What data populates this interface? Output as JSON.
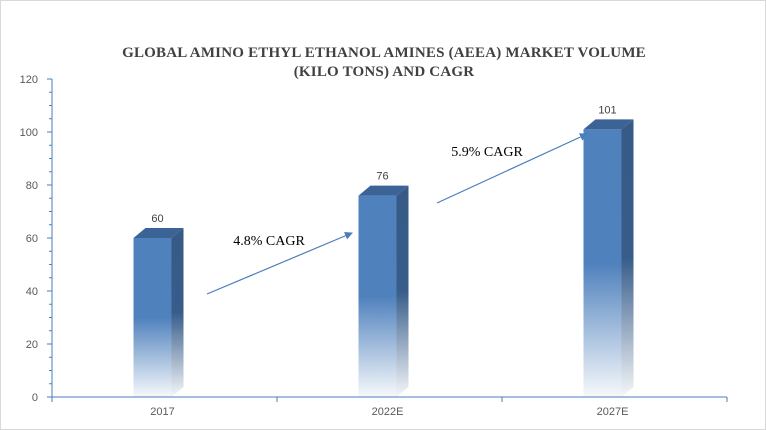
{
  "chart_data": {
    "type": "bar",
    "title": "GLOBAL AMINO ETHYL  ETHANOL AMINES (AEEA)  MARKET VOLUME (KILO TONS) AND CAGR",
    "title_lines": [
      "GLOBAL AMINO ETHYL  ETHANOL AMINES (AEEA)  MARKET VOLUME",
      "(KILO TONS) AND CAGR"
    ],
    "categories": [
      "2017",
      "2022E",
      "2027E"
    ],
    "values": [
      60,
      76,
      101
    ],
    "value_labels": [
      "60",
      "76",
      "101"
    ],
    "xlabel": "",
    "ylabel": "",
    "ylim": [
      0,
      120
    ],
    "yticks": [
      "0",
      "20",
      "40",
      "60",
      "80",
      "100",
      "120"
    ],
    "grid": false,
    "legend": null,
    "bar_color": "#4f81bd",
    "annotations": [
      {
        "text": "4.8% CAGR",
        "from": "2017",
        "to": "2022E"
      },
      {
        "text": "5.9% CAGR",
        "from": "2022E",
        "to": "2027E"
      }
    ]
  }
}
